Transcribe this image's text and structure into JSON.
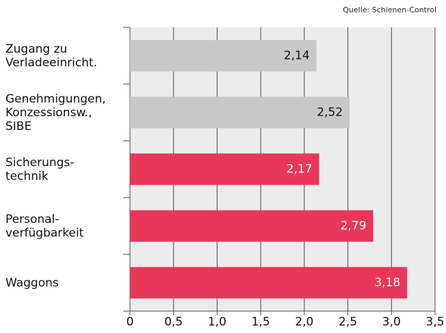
{
  "chart_data": {
    "type": "hbar",
    "source": "Quelle: Schienen-Control",
    "categories": [
      "Zugang zu\nVerladeeinricht.",
      "Genehmigungen,\nKonzessionsw.,\nSIBE",
      "Sicherungs-\ntechnik",
      "Personal-\nverfügbarkeit",
      "Waggons"
    ],
    "values": [
      2.14,
      2.52,
      2.17,
      2.79,
      3.18
    ],
    "value_labels": [
      "2,14",
      "2,52",
      "2,17",
      "2,79",
      "3,18"
    ],
    "colors": [
      "#c8c8c8",
      "#c8c8c8",
      "#e8375a",
      "#e8375a",
      "#e8375a"
    ],
    "xlim": [
      0,
      3.5
    ],
    "xticks": [
      0,
      {
        "value": 0.5,
        "label": "0,5"
      },
      {
        "value": 1,
        "label": "1,0"
      },
      {
        "value": 1.5,
        "label": "1,5"
      },
      {
        "value": 2,
        "label": "2,0"
      },
      {
        "value": 2.5,
        "label": "2,5"
      },
      {
        "value": 3,
        "label": "3,0"
      },
      {
        "value": 3.5,
        "label": "3,5"
      }
    ],
    "grid": true
  }
}
